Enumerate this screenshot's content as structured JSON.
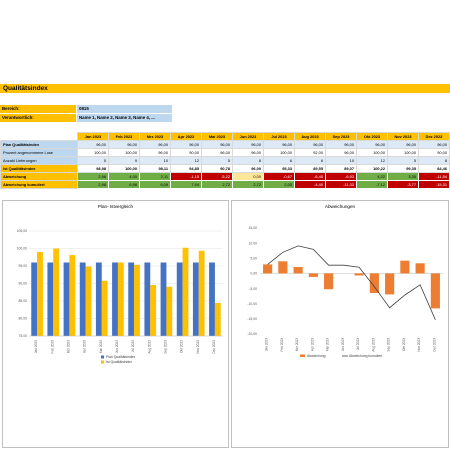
{
  "title": "Qualitätsindex",
  "info": [
    {
      "label": "Bereich:",
      "value": "0815"
    },
    {
      "label": "Verantwortlich:",
      "value": "Name 1, Name 2, Name 3, Name 4, ..."
    }
  ],
  "months": [
    "Jan 2023",
    "Feb 2023",
    "Mrz 2023",
    "Apr 2023",
    "Mai 2023",
    "Jun 2023",
    "Jul 2023",
    "Aug 2023",
    "Sep 2023",
    "Okt 2023",
    "Nov 2023",
    "Dez 2023"
  ],
  "rows": [
    {
      "label": "Plan Qualitätsindex",
      "values": [
        "96,00",
        "96,00",
        "96,00",
        "96,00",
        "96,00",
        "96,00",
        "96,00",
        "96,00",
        "96,00",
        "96,00",
        "96,00",
        "96,00"
      ]
    },
    {
      "label": "Prozent angenommene Lose",
      "values": [
        "100,00",
        "100,00",
        "96,00",
        "90,00",
        "96,00",
        "96,00",
        "100,00",
        "92,00",
        "96,00",
        "100,00",
        "100,00",
        "90,00"
      ]
    },
    {
      "label": "Anzahl Lieferungen",
      "values": [
        "5",
        "9",
        "10",
        "12",
        "5",
        "8",
        "6",
        "8",
        "10",
        "12",
        "5",
        "8"
      ]
    },
    {
      "label": "Ist Qualitätsindex",
      "values": [
        "98,98",
        "100,00",
        "98,11",
        "94,85",
        "90,78",
        "96,00",
        "95,33",
        "89,55",
        "89,07",
        "100,22",
        "99,35",
        "84,46"
      ]
    },
    {
      "label": "Abweichung",
      "values": [
        "2,98",
        "4,00",
        "2,11",
        "-1,15",
        "-5,22",
        "0,00",
        "-0,67",
        "-6,45",
        "-6,93",
        "4,22",
        "3,35",
        "-11,54"
      ],
      "colors": [
        "#70ad47",
        "#70ad47",
        "#70ad47",
        "#c00000",
        "#c00000",
        "#ffe699",
        "#c00000",
        "#c00000",
        "#c00000",
        "#70ad47",
        "#70ad47",
        "#c00000"
      ]
    },
    {
      "label": "Abweichung kumuliert",
      "values": [
        "2,98",
        "6,98",
        "9,09",
        "7,94",
        "2,72",
        "2,72",
        "2,05",
        "-4,40",
        "-11,33",
        "-7,12",
        "-3,77",
        "-15,31"
      ],
      "colors": [
        "#70ad47",
        "#70ad47",
        "#70ad47",
        "#70ad47",
        "#70ad47",
        "#70ad47",
        "#70ad47",
        "#c00000",
        "#c00000",
        "#70ad47",
        "#c00000",
        "#c00000"
      ]
    }
  ],
  "colors": {
    "accent": "#ffc000",
    "plan_bar": "#4472c4",
    "ist_bar": "#ffc000",
    "dev_bar": "#ed7d31",
    "cum_line": "#404040"
  },
  "chart_data": [
    {
      "type": "bar",
      "title": "Plan- Istvergleich",
      "categories": [
        "Jan 2023",
        "Feb 2023",
        "Mrz 2023",
        "Apr 2023",
        "Mai 2023",
        "Jun 2023",
        "Jul 2023",
        "Aug 2023",
        "Sep 2023",
        "Okt 2023",
        "Nov 2023",
        "Dez 2023"
      ],
      "series": [
        {
          "name": "Plan Qualitätsindex",
          "values": [
            96,
            96,
            96,
            96,
            96,
            96,
            96,
            96,
            96,
            96,
            96,
            96
          ]
        },
        {
          "name": "Ist Qualitätsindex",
          "values": [
            98.98,
            100.0,
            98.11,
            94.85,
            90.78,
            96.0,
            95.33,
            89.55,
            89.07,
            100.22,
            99.35,
            84.46
          ]
        }
      ],
      "ylim": [
        75,
        105
      ],
      "yticks": [
        "75,00",
        "80,00",
        "85,00",
        "90,00",
        "95,00",
        "100,00",
        "105,00"
      ],
      "legend": "bottom"
    },
    {
      "type": "bar",
      "title": "Abweichungen",
      "categories": [
        "Jan 2023",
        "Feb 2023",
        "Mrz 2023",
        "Apr 2023",
        "Mai 2023",
        "Jun 2023",
        "Jul 2023",
        "Aug 2023",
        "Sep 2023",
        "Okt 2023",
        "Nov 2023",
        "Dez 2023"
      ],
      "series": [
        {
          "name": "Abweichung",
          "type": "bar",
          "values": [
            2.98,
            4.0,
            2.11,
            -1.15,
            -5.22,
            0.0,
            -0.67,
            -6.45,
            -6.93,
            4.22,
            3.35,
            -11.54
          ]
        },
        {
          "name": "Abweichung kumuliert",
          "type": "line",
          "values": [
            2.98,
            6.98,
            9.09,
            7.94,
            2.72,
            2.72,
            2.05,
            -4.4,
            -11.33,
            -7.12,
            -3.77,
            -15.31
          ]
        }
      ],
      "ylim": [
        -20,
        15
      ],
      "yticks": [
        "-20,00",
        "-15,00",
        "-10,00",
        "-5,00",
        "0,00",
        "5,00",
        "10,00",
        "15,00"
      ],
      "legend": "bottom"
    }
  ]
}
